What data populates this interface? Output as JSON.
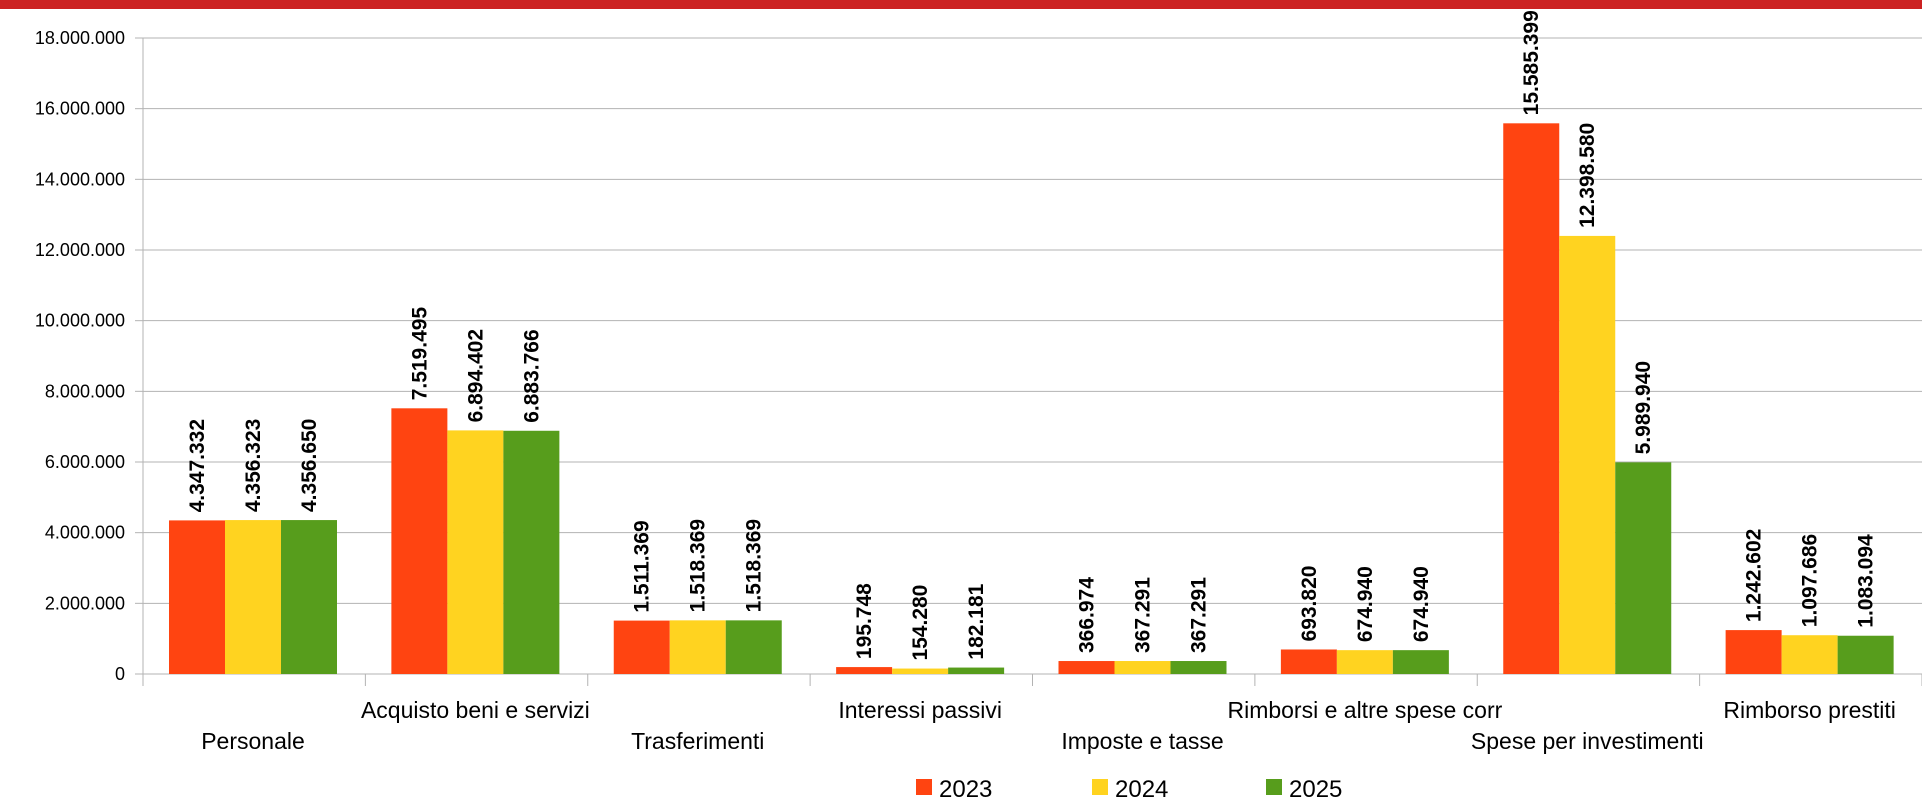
{
  "accent_bar_color": "#cc2222",
  "chart_data": {
    "type": "bar",
    "categories": [
      "Personale",
      "Acquisto beni e servizi",
      "Trasferimenti",
      "Interessi passivi",
      "Imposte e tasse",
      "Rimborsi e altre spese corr",
      "Spese per investimenti",
      "Rimborso prestiti"
    ],
    "series": [
      {
        "name": "2023",
        "color": "#ff4411",
        "values": [
          4347332,
          7519495,
          1511369,
          195748,
          366974,
          693820,
          15585399,
          1242602
        ],
        "labels": [
          "4.347.332",
          "7.519.495",
          "1.511.369",
          "195.748",
          "366.974",
          "693.820",
          "15.585.399",
          "1.242.602"
        ]
      },
      {
        "name": "2024",
        "color": "#ffd320",
        "values": [
          4356323,
          6894402,
          1518369,
          154280,
          367291,
          674940,
          12398580,
          1097686
        ],
        "labels": [
          "4.356.323",
          "6.894.402",
          "1.518.369",
          "154.280",
          "367.291",
          "674.940",
          "12.398.580",
          "1.097.686"
        ]
      },
      {
        "name": "2025",
        "color": "#579d1c",
        "values": [
          4356650,
          6883766,
          1518369,
          182181,
          367291,
          674940,
          5989940,
          1083094
        ],
        "labels": [
          "4.356.650",
          "6.883.766",
          "1.518.369",
          "182.181",
          "367.291",
          "674.940",
          "5.989.940",
          "1.083.094"
        ]
      }
    ],
    "yticks": [
      0,
      2000000,
      4000000,
      6000000,
      8000000,
      10000000,
      12000000,
      14000000,
      16000000,
      18000000
    ],
    "ytick_labels": [
      "0",
      "2.000.000",
      "4.000.000",
      "6.000.000",
      "8.000.000",
      "10.000.000",
      "12.000.000",
      "14.000.000",
      "16.000.000",
      "18.000.000"
    ],
    "ylim": [
      0,
      18000000
    ],
    "grid": true,
    "legend_position": "bottom-center"
  }
}
